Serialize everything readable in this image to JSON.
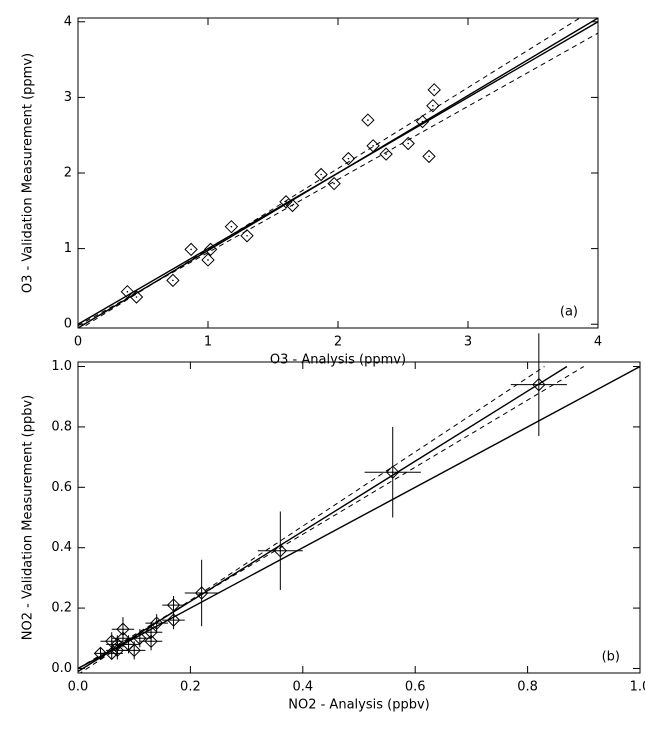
{
  "chart_data": [
    {
      "type": "scatter",
      "annotation": "(a)",
      "x_label": "O3 - Analysis (ppmv)",
      "y_label": "O3 - Validation Measurement (ppmv)",
      "xlim": [
        0,
        4
      ],
      "ylim": [
        -0.05,
        4.05
      ],
      "xticks": [
        0,
        1,
        2,
        3,
        4
      ],
      "yticks": [
        0,
        1,
        2,
        3,
        4
      ],
      "color": "#000000",
      "x": [
        0.38,
        0.45,
        0.73,
        0.87,
        1.0,
        1.02,
        1.18,
        1.3,
        1.6,
        1.65,
        1.87,
        1.97,
        2.08,
        2.23,
        2.27,
        2.37,
        2.54,
        2.65,
        2.7,
        2.73,
        2.74
      ],
      "values": [
        0.43,
        0.36,
        0.58,
        0.99,
        0.85,
        0.99,
        1.29,
        1.17,
        1.62,
        1.57,
        1.98,
        1.86,
        2.19,
        2.7,
        2.36,
        2.25,
        2.39,
        2.68,
        2.22,
        2.89,
        3.1
      ],
      "lines": [
        {
          "x": [
            0,
            4
          ],
          "y": [
            0,
            4
          ],
          "dashed": false
        },
        {
          "x": [
            0,
            4
          ],
          "y": [
            -0.05,
            4.05
          ],
          "dashed": false
        },
        {
          "x": [
            0,
            4
          ],
          "y": [
            -0.08,
            4.2
          ],
          "dashed": true
        },
        {
          "x": [
            0,
            4
          ],
          "y": [
            -0.02,
            3.85
          ],
          "dashed": true
        }
      ]
    },
    {
      "type": "scatter",
      "annotation": "(b)",
      "x_label": "NO2 - Analysis (ppbv)",
      "y_label": "NO2 - Validation Measurement (ppbv)",
      "xlim": [
        0,
        1
      ],
      "ylim": [
        -0.015,
        1.015
      ],
      "xticks": [
        {
          "value": 0,
          "label": "0.0"
        },
        0.2,
        0.4,
        0.6,
        0.8,
        {
          "value": 1,
          "label": "1.0"
        }
      ],
      "yticks": [
        {
          "value": 0,
          "label": "0.0"
        },
        0.2,
        0.4,
        0.6,
        0.8,
        {
          "value": 1,
          "label": "1.0"
        }
      ],
      "color": "#000000",
      "x": [
        0.82,
        0.56,
        0.36,
        0.22,
        0.17,
        0.17,
        0.14,
        0.13,
        0.13,
        0.11,
        0.1,
        0.09,
        0.08,
        0.08,
        0.07,
        0.07,
        0.06,
        0.04,
        0.06
      ],
      "values": [
        0.94,
        0.65,
        0.39,
        0.25,
        0.21,
        0.16,
        0.15,
        0.12,
        0.09,
        0.1,
        0.06,
        0.08,
        0.13,
        0.1,
        0.06,
        0.08,
        0.05,
        0.05,
        0.09
      ],
      "x_errors": [
        0.05,
        0.05,
        0.04,
        0.03,
        0.02,
        0.02,
        0.02,
        0.02,
        0.02,
        0.02,
        0.02,
        0.02,
        0.02,
        0.02,
        0.02,
        0.02,
        0.02,
        0.01,
        0.02
      ],
      "y_errors": [
        0.17,
        0.15,
        0.13,
        0.11,
        0.03,
        0.03,
        0.03,
        0.03,
        0.03,
        0.03,
        0.03,
        0.03,
        0.04,
        0.03,
        0.03,
        0.03,
        0.02,
        0.02,
        0.03
      ],
      "lines": [
        {
          "x": [
            0,
            1
          ],
          "y": [
            0,
            1
          ],
          "dashed": false
        },
        {
          "x": [
            0,
            0.87
          ],
          "y": [
            -0.01,
            1
          ],
          "dashed": false
        },
        {
          "x": [
            0,
            0.83
          ],
          "y": [
            -0.02,
            1
          ],
          "dashed": true
        },
        {
          "x": [
            0,
            0.9
          ],
          "y": [
            0,
            1
          ],
          "dashed": true
        }
      ]
    }
  ]
}
